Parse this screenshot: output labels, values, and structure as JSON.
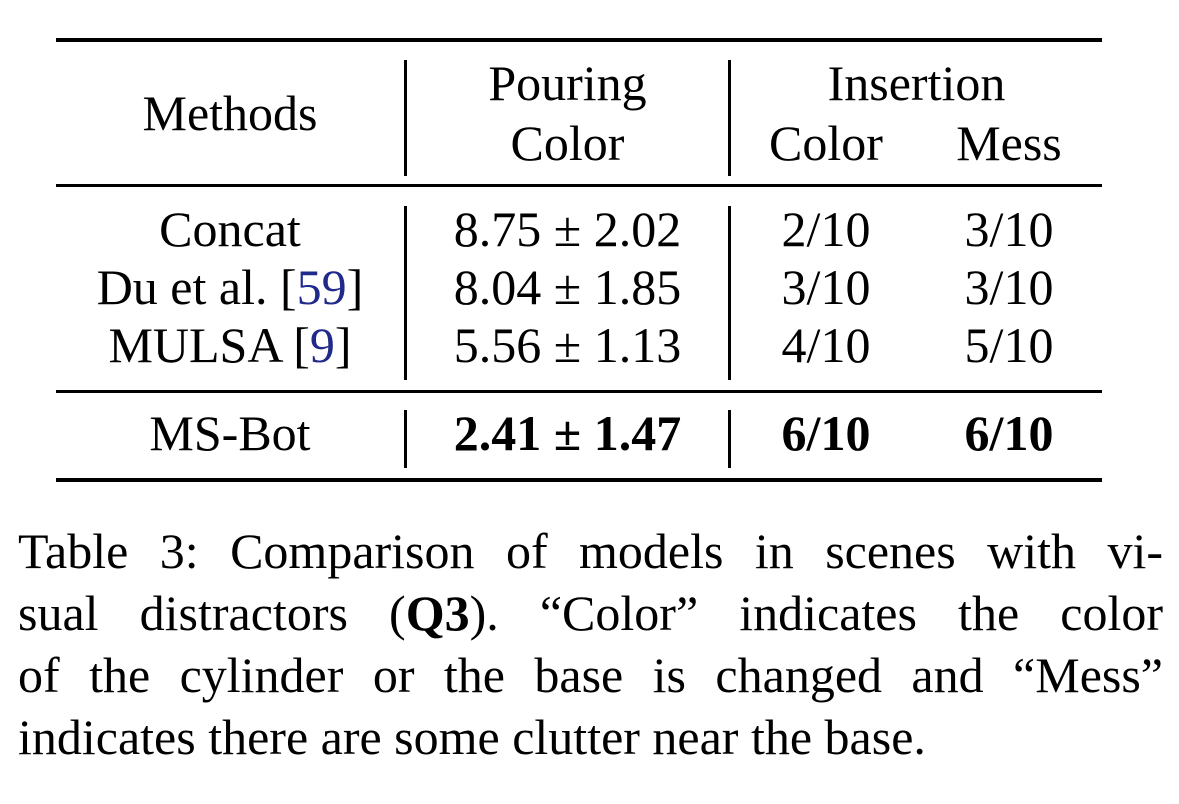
{
  "table": {
    "header": {
      "methods": "Methods",
      "pouring": "Pouring",
      "insertion": "Insertion",
      "pouring_color": "Color",
      "insertion_color": "Color",
      "insertion_mess": "Mess"
    },
    "rows": [
      {
        "method": "Concat",
        "cite": "",
        "pouring_color": "8.75 ± 2.02",
        "insertion_color": "2/10",
        "insertion_mess": "3/10"
      },
      {
        "method": "Du et al. [",
        "cite": "59",
        "cite_close": "]",
        "pouring_color": "8.04 ± 1.85",
        "insertion_color": "3/10",
        "insertion_mess": "3/10"
      },
      {
        "method": "MULSA [",
        "cite": "9",
        "cite_close": "]",
        "pouring_color": "5.56 ± 1.13",
        "insertion_color": "4/10",
        "insertion_mess": "5/10"
      }
    ],
    "best_row": {
      "method": "MS-Bot",
      "pouring_color": "2.41 ± 1.47",
      "insertion_color": "6/10",
      "insertion_mess": "6/10"
    }
  },
  "caption": {
    "line1": "Table 3: Comparison of models in scenes with vi-",
    "line2_pre": "sual distractors (",
    "line2_bold": "Q3",
    "line2_post": "). “Color” indicates the color",
    "line3": "of the cylinder or the base is changed and “Mess”",
    "line4": "indicates there are some clutter near the base."
  }
}
